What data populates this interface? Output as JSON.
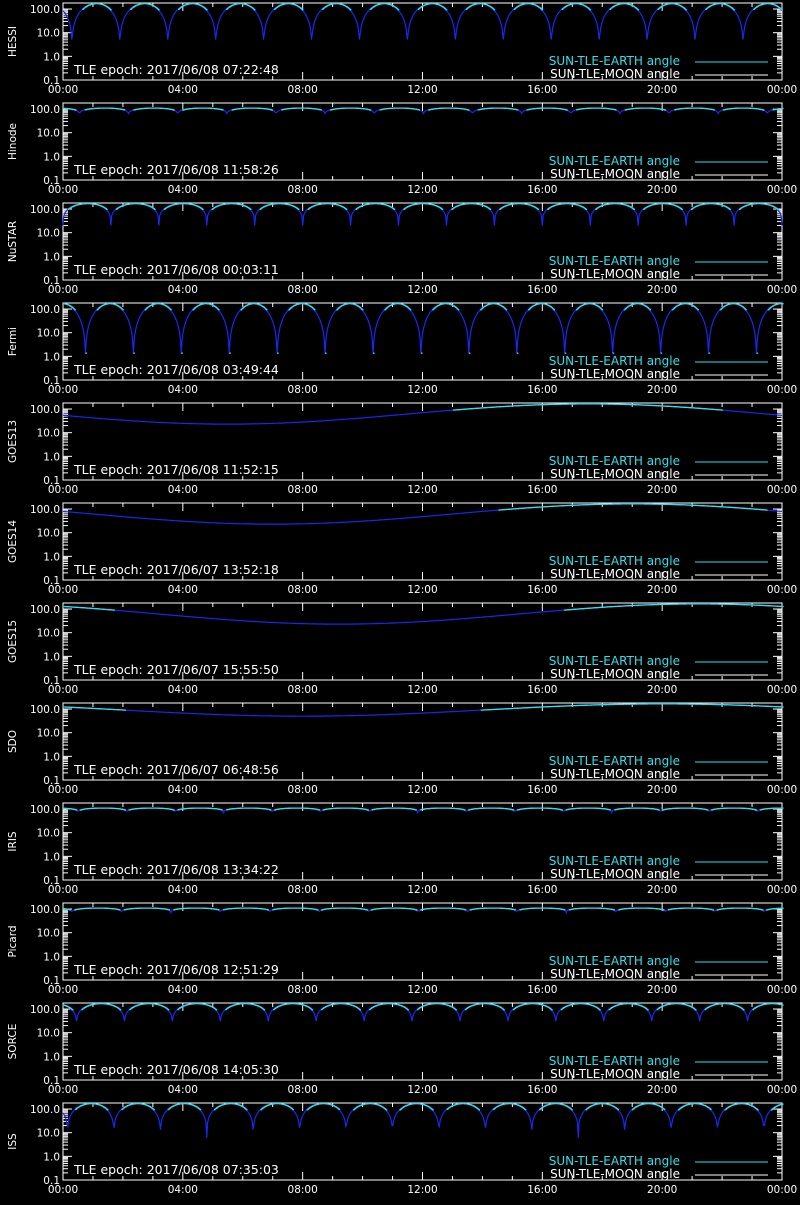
{
  "chart_data": {
    "type": "line",
    "x_tick_labels": [
      "00:00",
      "04:00",
      "08:00",
      "12:00",
      "16:00",
      "20:00",
      "00:00"
    ],
    "y_tick_labels": [
      "100.0",
      "10.0",
      "1.0",
      "0.1"
    ],
    "y_scale": "log",
    "xlim_hours": [
      0,
      24
    ],
    "ylim": [
      0.1,
      180
    ],
    "legend": {
      "placement": "bottom-right",
      "entries": [
        {
          "label": "SUN-TLE-EARTH angle",
          "color": "#30e0e8"
        },
        {
          "label": "SUN-TLE-MOON angle",
          "color": "#ffffff"
        }
      ]
    },
    "colors": {
      "earth_angle": "#30e0e8",
      "earth_angle_dark": "#1828f0",
      "moon_angle": "#ffffff",
      "axes": "#ffffff",
      "background": "#000000"
    },
    "moon_angle_deg": 180,
    "panels": [
      {
        "name": "HESSI",
        "epoch_label": "TLE epoch: 2017/06/08 07:22:48",
        "kind": "orbit",
        "period_h": 1.6,
        "min_deg": 1.2,
        "max_deg": 170,
        "phase_h": 0.3
      },
      {
        "name": "Hinode",
        "epoch_label": "TLE epoch: 2017/06/08 11:58:26",
        "kind": "orbit",
        "period_h": 1.64,
        "min_deg": 55,
        "max_deg": 110,
        "phase_h": 0.55
      },
      {
        "name": "NuSTAR",
        "epoch_label": "TLE epoch: 2017/06/08 00:03:11",
        "kind": "orbit",
        "period_h": 1.6,
        "min_deg": 20,
        "max_deg": 170,
        "phase_h": 0.0
      },
      {
        "name": "Fermi",
        "epoch_label": "TLE epoch: 2017/06/08 03:49:44",
        "kind": "orbit",
        "period_h": 1.6,
        "min_deg": 0.3,
        "max_deg": 170,
        "phase_h": 0.75
      },
      {
        "name": "GOES13",
        "epoch_label": "TLE epoch: 2017/06/08 11:52:15",
        "kind": "geo",
        "min_deg": 23,
        "min_at_h": 5.5
      },
      {
        "name": "GOES14",
        "epoch_label": "TLE epoch: 2017/06/07 13:52:18",
        "kind": "geo",
        "min_deg": 23,
        "min_at_h": 7.0
      },
      {
        "name": "GOES15",
        "epoch_label": "TLE epoch: 2017/06/07 15:55:50",
        "kind": "geo",
        "min_deg": 23,
        "min_at_h": 9.2
      },
      {
        "name": "SDO",
        "epoch_label": "TLE epoch: 2017/06/07 06:48:56",
        "kind": "geo",
        "min_deg": 50,
        "min_at_h": 8.0
      },
      {
        "name": "IRIS",
        "epoch_label": "TLE epoch: 2017/06/08 13:34:22",
        "kind": "orbit",
        "period_h": 1.62,
        "min_deg": 70,
        "max_deg": 110,
        "phase_h": 0.5
      },
      {
        "name": "Picard",
        "epoch_label": "TLE epoch: 2017/06/08 12:51:29",
        "kind": "orbit",
        "period_h": 1.65,
        "min_deg": 70,
        "max_deg": 110,
        "phase_h": 0.3
      },
      {
        "name": "SORCE",
        "epoch_label": "TLE epoch: 2017/06/08 14:05:30",
        "kind": "orbit",
        "period_h": 1.6,
        "min_deg": 18,
        "max_deg": 170,
        "phase_h": 0.45
      },
      {
        "name": "ISS",
        "epoch_label": "TLE epoch: 2017/06/08 07:35:03",
        "kind": "orbit",
        "period_h": 1.55,
        "min_deg": 6,
        "max_deg": 170,
        "phase_h": 0.15
      }
    ]
  }
}
